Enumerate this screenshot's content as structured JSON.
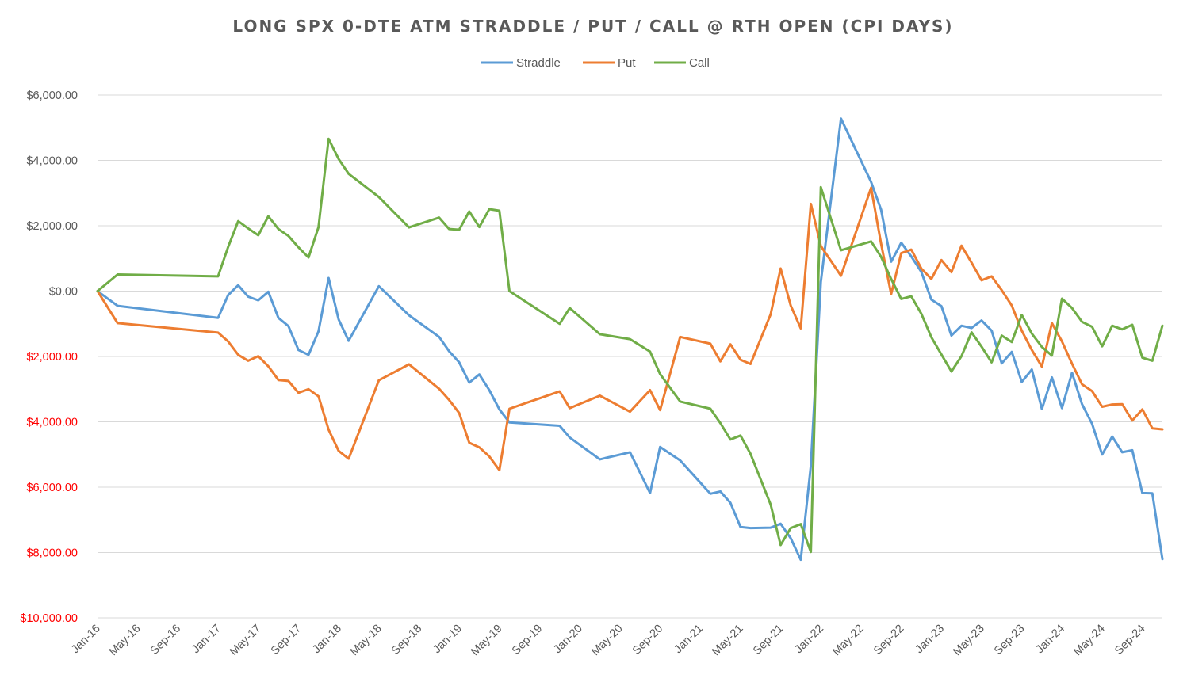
{
  "chart_data": {
    "type": "line",
    "title": "LONG SPX 0-DTE ATM STRADDLE / PUT / CALL @ RTH OPEN (CPI DAYS)",
    "xlabel": "",
    "ylabel": "",
    "ylim": [
      -10000,
      6000
    ],
    "yticks": [
      6000,
      4000,
      2000,
      0,
      -2000,
      -4000,
      -6000,
      -8000,
      -10000
    ],
    "ytick_labels": [
      "$6,000.00",
      "$4,000.00",
      "$2,000.00",
      "$0.00",
      "$2,000.00",
      "$4,000.00",
      "$6,000.00",
      "$8,000.00",
      "$10,000.00"
    ],
    "ytick_colors": [
      "#595959",
      "#595959",
      "#595959",
      "#595959",
      "#ff0000",
      "#ff0000",
      "#ff0000",
      "#ff0000",
      "#ff0000"
    ],
    "x_axis_months": [
      0,
      106
    ],
    "xticks": [
      0,
      4,
      8,
      12,
      16,
      20,
      24,
      28,
      32,
      36,
      40,
      44,
      48,
      52,
      56,
      60,
      64,
      68,
      72,
      76,
      80,
      84,
      88,
      92,
      96,
      100,
      104
    ],
    "xtick_labels": [
      "Jan-16",
      "May-16",
      "Sep-16",
      "Jan-17",
      "May-17",
      "Sep-17",
      "Jan-18",
      "May-18",
      "Sep-18",
      "Jan-19",
      "May-19",
      "Sep-19",
      "Jan-20",
      "May-20",
      "Sep-20",
      "Jan-21",
      "May-21",
      "Sep-21",
      "Jan-22",
      "May-22",
      "Sep-22",
      "Jan-23",
      "May-23",
      "Sep-23",
      "Jan-24",
      "May-24",
      "Sep-24"
    ],
    "legend": {
      "position": "top-center",
      "entries": [
        "Straddle",
        "Put",
        "Call"
      ]
    },
    "grid": true,
    "x": [
      0,
      2,
      12,
      13,
      14,
      15,
      16,
      17,
      18,
      19,
      20,
      21,
      22,
      23,
      24,
      25,
      28,
      31,
      34,
      35,
      36,
      37,
      38,
      39,
      40,
      41,
      46,
      47,
      50,
      53,
      55,
      56,
      58,
      61,
      62,
      63,
      64,
      65,
      67,
      68,
      69,
      70,
      71,
      72,
      74,
      77,
      78,
      79,
      80,
      81,
      82,
      83,
      84,
      85,
      86,
      87,
      88,
      89,
      90,
      91,
      92,
      93,
      94,
      95,
      96,
      97,
      98,
      99,
      100,
      101,
      102,
      103,
      104,
      105,
      106
    ],
    "series": [
      {
        "name": "Straddle",
        "color": "#5b9bd5",
        "values": [
          0,
          -450,
          -820,
          -120,
          180,
          -170,
          -280,
          -20,
          -820,
          -1070,
          -1800,
          -1950,
          -1230,
          400,
          -870,
          -1520,
          150,
          -740,
          -1400,
          -1840,
          -2180,
          -2800,
          -2550,
          -3030,
          -3620,
          -4020,
          -4120,
          -4480,
          -5150,
          -4930,
          -6180,
          -4770,
          -5180,
          -6200,
          -6130,
          -6480,
          -7220,
          -7250,
          -7240,
          -7120,
          -7560,
          -8220,
          -5350,
          280,
          5280,
          3340,
          2490,
          900,
          1480,
          1060,
          590,
          -260,
          -460,
          -1360,
          -1060,
          -1130,
          -900,
          -1210,
          -2210,
          -1860,
          -2780,
          -2400,
          -3610,
          -2640,
          -3580,
          -2500,
          -3460,
          -4060,
          -5000,
          -4450,
          -4930,
          -4870,
          -6180,
          -6190,
          -8200
        ]
      },
      {
        "name": "Put",
        "color": "#ed7d31",
        "values": [
          0,
          -980,
          -1270,
          -1540,
          -1950,
          -2130,
          -1990,
          -2300,
          -2720,
          -2750,
          -3110,
          -3000,
          -3220,
          -4240,
          -4890,
          -5130,
          -2730,
          -2240,
          -2990,
          -3330,
          -3730,
          -4640,
          -4780,
          -5060,
          -5480,
          -3600,
          -3070,
          -3580,
          -3200,
          -3690,
          -3030,
          -3640,
          -1400,
          -1610,
          -2150,
          -1630,
          -2100,
          -2230,
          -710,
          690,
          -440,
          -1140,
          2670,
          1380,
          470,
          3160,
          1450,
          -90,
          1160,
          1270,
          690,
          370,
          950,
          580,
          1390,
          870,
          330,
          450,
          30,
          -440,
          -1210,
          -1800,
          -2310,
          -980,
          -1540,
          -2220,
          -2850,
          -3060,
          -3540,
          -3470,
          -3460,
          -3960,
          -3620,
          -4200,
          -4230
        ]
      },
      {
        "name": "Call",
        "color": "#70ad47",
        "values": [
          0,
          510,
          450,
          1350,
          2140,
          1920,
          1710,
          2290,
          1900,
          1690,
          1340,
          1030,
          1960,
          4660,
          4040,
          3590,
          2880,
          1950,
          2250,
          1900,
          1880,
          2440,
          1960,
          2510,
          2460,
          0,
          -1000,
          -520,
          -1320,
          -1470,
          -1850,
          -2540,
          -3380,
          -3600,
          -4040,
          -4540,
          -4420,
          -4980,
          -6530,
          -7770,
          -7250,
          -7130,
          -7980,
          3180,
          1250,
          1520,
          1050,
          370,
          -240,
          -160,
          -690,
          -1410,
          -1940,
          -2460,
          -1990,
          -1260,
          -1700,
          -2180,
          -1360,
          -1560,
          -730,
          -1300,
          -1710,
          -1970,
          -230,
          -520,
          -940,
          -1090,
          -1690,
          -1060,
          -1170,
          -1030,
          -2040,
          -2130,
          -1060
        ]
      }
    ]
  }
}
